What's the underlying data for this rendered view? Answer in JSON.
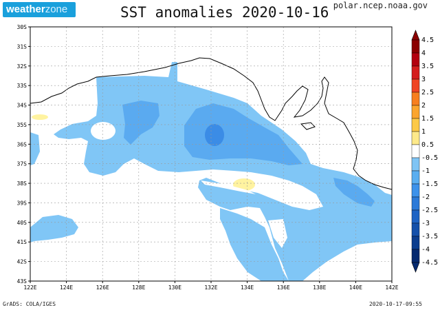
{
  "header": {
    "logo_main": "weather",
    "logo_accent": "zone",
    "title": "SST anomalies 2020-10-16",
    "source": "polar.ncep.noaa.gov"
  },
  "map": {
    "lat_labels": [
      "30S",
      "31S",
      "32S",
      "33S",
      "34S",
      "35S",
      "36S",
      "37S",
      "38S",
      "39S",
      "40S",
      "41S",
      "42S",
      "43S"
    ],
    "lon_labels": [
      "122E",
      "124E",
      "126E",
      "128E",
      "130E",
      "132E",
      "134E",
      "136E",
      "138E",
      "140E",
      "142E"
    ]
  },
  "colorbar": {
    "labels": [
      "4.5",
      "4",
      "3.5",
      "3",
      "2.5",
      "2",
      "1.5",
      "1",
      "0.5",
      "-0.5",
      "-1",
      "-1.5",
      "-2",
      "-2.5",
      "-3",
      "-3.5",
      "-4",
      "-4.5"
    ],
    "colors": [
      "#8b0000",
      "#b3000f",
      "#d41d1d",
      "#ef4423",
      "#f77f1f",
      "#fba52e",
      "#fcc946",
      "#fde98a",
      "#ffffff",
      "#7fc4f4",
      "#5aaef0",
      "#3d92ea",
      "#2c7ad8",
      "#1e63c4",
      "#1450aa",
      "#0b3d8e",
      "#052a70"
    ]
  },
  "colors": {
    "anom_light_blue": "#80c6f6",
    "anom_mid_blue": "#5aaaf0",
    "anom_dark_blue": "#3b8ce6",
    "anom_yellow": "#fff3a0"
  },
  "footer": {
    "left": "GrADS: COLA/IGES",
    "right": "2020-10-17-09:55"
  }
}
